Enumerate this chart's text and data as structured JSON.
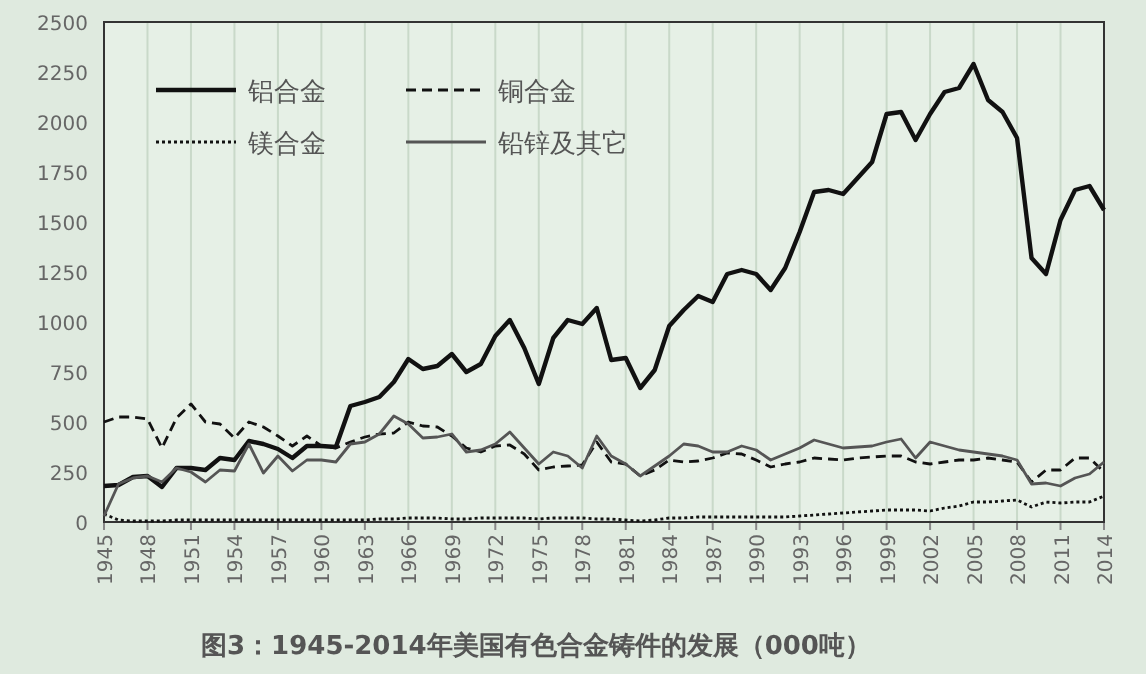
{
  "chart_data": {
    "type": "line",
    "title": "图3：1945-2014年美国有色合金铸件的发展（000吨）",
    "x": [
      1945,
      1946,
      1947,
      1948,
      1949,
      1950,
      1951,
      1952,
      1953,
      1954,
      1955,
      1956,
      1957,
      1958,
      1959,
      1960,
      1961,
      1962,
      1963,
      1964,
      1965,
      1966,
      1967,
      1968,
      1969,
      1970,
      1971,
      1972,
      1973,
      1974,
      1975,
      1976,
      1977,
      1978,
      1979,
      1980,
      1981,
      1982,
      1983,
      1984,
      1985,
      1986,
      1987,
      1988,
      1989,
      1990,
      1991,
      1992,
      1993,
      1994,
      1995,
      1996,
      1997,
      1998,
      1999,
      2000,
      2001,
      2002,
      2003,
      2004,
      2005,
      2006,
      2007,
      2008,
      2009,
      2010,
      2011,
      2012,
      2013,
      2014
    ],
    "xlim": [
      1945,
      2014
    ],
    "xticks": [
      1945,
      1948,
      1951,
      1954,
      1957,
      1960,
      1963,
      1966,
      1969,
      1972,
      1975,
      1978,
      1981,
      1984,
      1987,
      1990,
      1993,
      1996,
      1999,
      2002,
      2005,
      2008,
      2011,
      2014
    ],
    "ylim": [
      0,
      2500
    ],
    "yticks": [
      0,
      250,
      500,
      750,
      1000,
      1250,
      1500,
      1750,
      2000,
      2250,
      2500
    ],
    "grid": "x",
    "legend": "top left",
    "marker": "none",
    "series": [
      {
        "name": "铝合金",
        "color": "#111111",
        "line_style": "solid",
        "values": [
          180,
          185,
          225,
          230,
          175,
          270,
          270,
          260,
          320,
          310,
          405,
          390,
          365,
          320,
          380,
          380,
          375,
          580,
          600,
          625,
          700,
          815,
          765,
          780,
          840,
          750,
          790,
          930,
          1010,
          870,
          690,
          920,
          1010,
          990,
          1070,
          810,
          820,
          670,
          760,
          980,
          1060,
          1130,
          1100,
          1240,
          1260,
          1240,
          1160,
          1270,
          1450,
          1650,
          1660,
          1640,
          1720,
          1800,
          2040,
          2050,
          1910,
          2040,
          2150,
          2170,
          2290,
          2110,
          2050,
          1920,
          1320,
          1240,
          1510,
          1660,
          1680,
          1560
        ]
      },
      {
        "name": "铜合金",
        "color": "#111111",
        "line_style": "dashed",
        "values": [
          500,
          525,
          525,
          515,
          370,
          520,
          590,
          500,
          490,
          420,
          500,
          475,
          430,
          380,
          430,
          380,
          370,
          400,
          425,
          440,
          445,
          500,
          480,
          475,
          430,
          370,
          350,
          380,
          385,
          340,
          260,
          275,
          280,
          285,
          400,
          300,
          290,
          230,
          260,
          310,
          300,
          305,
          320,
          345,
          340,
          310,
          275,
          290,
          300,
          320,
          315,
          310,
          320,
          325,
          330,
          330,
          300,
          290,
          300,
          310,
          310,
          320,
          310,
          300,
          200,
          260,
          260,
          320,
          320,
          250
        ]
      },
      {
        "name": "镁合金",
        "color": "#111111",
        "line_style": "dotted",
        "values": [
          40,
          10,
          5,
          5,
          5,
          10,
          10,
          10,
          10,
          10,
          10,
          10,
          10,
          10,
          10,
          10,
          10,
          10,
          10,
          15,
          15,
          20,
          20,
          20,
          15,
          15,
          20,
          20,
          20,
          20,
          15,
          20,
          20,
          20,
          15,
          15,
          10,
          5,
          10,
          20,
          20,
          25,
          25,
          25,
          25,
          25,
          25,
          25,
          30,
          35,
          40,
          45,
          50,
          55,
          60,
          60,
          60,
          55,
          70,
          80,
          100,
          100,
          105,
          110,
          75,
          100,
          95,
          100,
          100,
          130
        ]
      },
      {
        "name": "铅锌及其它",
        "color": "#555555",
        "line_style": "solid",
        "values": [
          30,
          190,
          220,
          230,
          200,
          270,
          250,
          200,
          260,
          255,
          390,
          245,
          330,
          255,
          310,
          310,
          300,
          390,
          400,
          440,
          530,
          490,
          420,
          425,
          440,
          350,
          360,
          390,
          450,
          370,
          290,
          350,
          330,
          270,
          430,
          330,
          290,
          230,
          280,
          330,
          390,
          380,
          350,
          350,
          380,
          360,
          310,
          340,
          370,
          410,
          390,
          370,
          375,
          380,
          400,
          415,
          320,
          400,
          380,
          360,
          350,
          340,
          330,
          310,
          190,
          195,
          180,
          220,
          240,
          300
        ]
      }
    ]
  }
}
